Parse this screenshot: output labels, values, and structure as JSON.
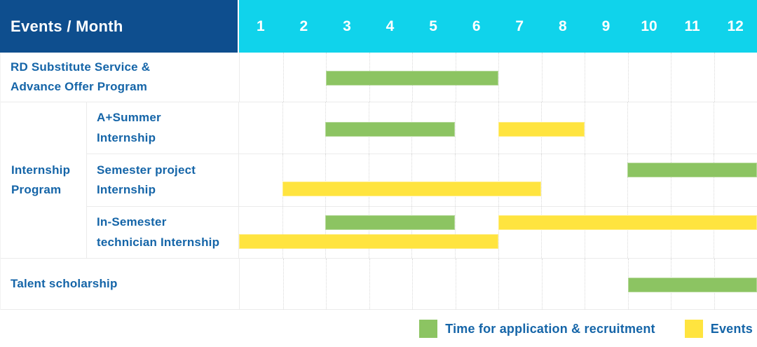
{
  "colors": {
    "header_bg": "#0E4E8E",
    "month_header_bg": "#10D3EB",
    "application_green": "#8CC462",
    "events_yellow": "#FFE43F",
    "label_text_blue": "#1565A8",
    "grid_border": "#EBEBEB"
  },
  "chart_data": {
    "type": "gantt",
    "header_label": "Events / Month",
    "months": [
      "1",
      "2",
      "3",
      "4",
      "5",
      "6",
      "7",
      "8",
      "9",
      "10",
      "11",
      "12"
    ],
    "x_range": [
      1,
      12
    ],
    "group_label": "Internship\nProgram",
    "rows": [
      {
        "label": "RD Substitute Service &\nAdvance Offer Program",
        "group": null,
        "lanes": 1,
        "bars": [
          {
            "series": "application",
            "start_month": 3,
            "end_month": 6,
            "lane": 1
          }
        ]
      },
      {
        "label": "A+Summer\nInternship",
        "group": "Internship Program",
        "lanes": 1,
        "bars": [
          {
            "series": "application",
            "start_month": 3,
            "end_month": 5,
            "lane": 1
          },
          {
            "series": "events",
            "start_month": 7,
            "end_month": 8,
            "lane": 1
          }
        ]
      },
      {
        "label": "Semester project\nInternship",
        "group": "Internship Program",
        "lanes": 2,
        "bars": [
          {
            "series": "application",
            "start_month": 10,
            "end_month": 12,
            "lane": 1
          },
          {
            "series": "events",
            "start_month": 2,
            "end_month": 7,
            "lane": 2
          }
        ]
      },
      {
        "label": "In-Semester\ntechnician Internship",
        "group": "Internship Program",
        "lanes": 2,
        "bars": [
          {
            "series": "application",
            "start_month": 3,
            "end_month": 5,
            "lane": 1
          },
          {
            "series": "events",
            "start_month": 7,
            "end_month": 12,
            "lane": 1
          },
          {
            "series": "events",
            "start_month": 1,
            "end_month": 6,
            "lane": 2
          }
        ]
      },
      {
        "label": "Talent scholarship",
        "group": null,
        "lanes": 1,
        "bars": [
          {
            "series": "application",
            "start_month": 10,
            "end_month": 12,
            "lane": 1
          }
        ]
      }
    ],
    "series_colors": {
      "application": "#8CC462",
      "events": "#FFE43F"
    },
    "legend": [
      {
        "series": "application",
        "label": "Time for application & recruitment",
        "color": "#8CC462"
      },
      {
        "series": "events",
        "label": "Events",
        "color": "#FFE43F"
      }
    ]
  }
}
